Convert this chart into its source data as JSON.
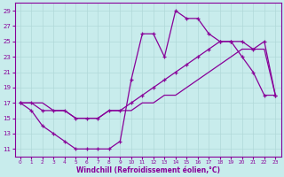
{
  "xlabel": "Windchill (Refroidissement éolien,°C)",
  "background_color": "#c8ecec",
  "grid_color": "#b0d8d8",
  "line_color": "#880099",
  "x_ticks": [
    0,
    1,
    2,
    3,
    4,
    5,
    6,
    7,
    8,
    9,
    10,
    11,
    12,
    13,
    14,
    15,
    16,
    17,
    18,
    19,
    20,
    21,
    22,
    23
  ],
  "y_ticks": [
    11,
    13,
    15,
    17,
    19,
    21,
    23,
    25,
    27,
    29
  ],
  "xlim": [
    -0.5,
    23.5
  ],
  "ylim": [
    10,
    30
  ],
  "line1_x": [
    0,
    1,
    2,
    3,
    4,
    5,
    6,
    7,
    8,
    9,
    10,
    11,
    12,
    13,
    14,
    15,
    16,
    17,
    18,
    19,
    20,
    21,
    22,
    23
  ],
  "line1_y": [
    17,
    16,
    14,
    13,
    12,
    11,
    11,
    11,
    11,
    12,
    20,
    26,
    26,
    23,
    29,
    28,
    28,
    26,
    25,
    25,
    23,
    21,
    18,
    18
  ],
  "line2_x": [
    0,
    1,
    2,
    3,
    4,
    5,
    6,
    7,
    8,
    9,
    10,
    11,
    12,
    13,
    14,
    15,
    16,
    17,
    18,
    19,
    20,
    21,
    22,
    23
  ],
  "line2_y": [
    17,
    17,
    16,
    16,
    16,
    15,
    15,
    15,
    16,
    16,
    17,
    18,
    19,
    20,
    21,
    22,
    23,
    24,
    25,
    25,
    25,
    24,
    25,
    18
  ],
  "line3_x": [
    0,
    1,
    2,
    3,
    4,
    5,
    6,
    7,
    8,
    9,
    10,
    11,
    12,
    13,
    14,
    15,
    16,
    17,
    18,
    19,
    20,
    21,
    22,
    23
  ],
  "line3_y": [
    17,
    17,
    17,
    16,
    16,
    15,
    15,
    15,
    16,
    16,
    16,
    17,
    17,
    18,
    18,
    19,
    20,
    21,
    22,
    23,
    24,
    24,
    24,
    18
  ]
}
